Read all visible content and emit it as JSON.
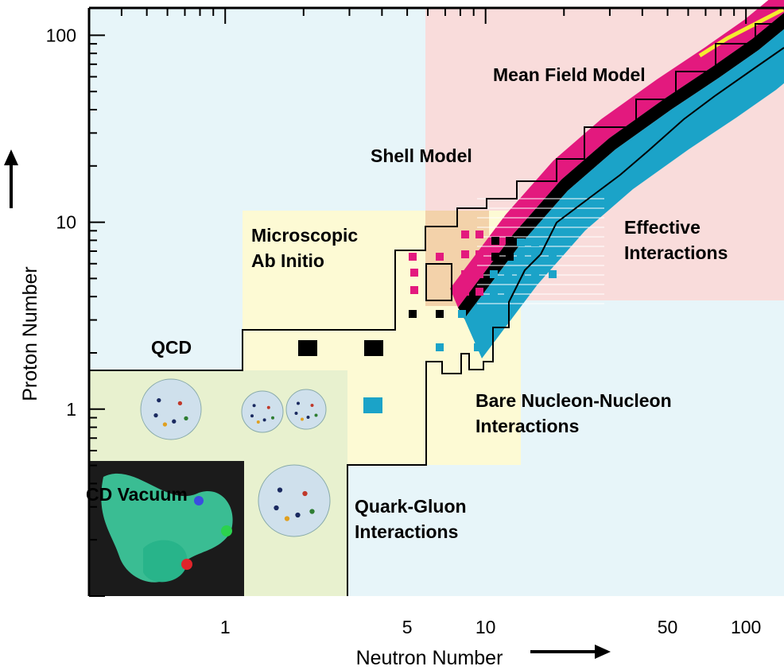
{
  "chart_data": {
    "type": "region-map",
    "xscale": "log",
    "yscale": "log",
    "xlim": [
      0.3,
      140
    ],
    "ylim": [
      0.1,
      140
    ],
    "xlabel": "Neutron Number",
    "ylabel": "Proton Number",
    "xticks": [
      {
        "value": 1,
        "label": "1"
      },
      {
        "value": 5,
        "label": "5"
      },
      {
        "value": 10,
        "label": "10"
      },
      {
        "value": 50,
        "label": "50"
      },
      {
        "value": 100,
        "label": "100"
      }
    ],
    "yticks": [
      {
        "value": 1,
        "label": "1"
      },
      {
        "value": 10,
        "label": "10"
      },
      {
        "value": 100,
        "label": "100"
      }
    ],
    "regions": [
      {
        "name": "QCD",
        "label": "QCD",
        "color": "#e7f5f9"
      },
      {
        "name": "QCD Vacuum",
        "label": "CD Vacuum",
        "color": "#1b1b1b"
      },
      {
        "name": "Microscopic Ab Initio",
        "label_lines": [
          "Microscopic",
          "Ab Initio"
        ],
        "color": "#fdfad4"
      },
      {
        "name": "Mean Field Model",
        "label": "Mean Field Model",
        "color": "#f9dcdb"
      },
      {
        "name": "Shell Model",
        "label": "Shell Model",
        "color": "#f3d2aa"
      },
      {
        "name": "Effective Interactions",
        "label_lines": [
          "Effective",
          "Interactions"
        ]
      },
      {
        "name": "Bare Nucleon-Nucleon Interactions",
        "label_lines": [
          "Bare Nucleon-Nucleon",
          "Interactions"
        ]
      },
      {
        "name": "Quark-Gluon Interactions",
        "label_lines": [
          "Quark-Gluon",
          "Interactions"
        ],
        "color": "#e8f1cf"
      }
    ],
    "nuclide_colors": {
      "proton_rich": "#e3197e",
      "stable": "#000000",
      "neutron_rich": "#1ba3c8",
      "edge": "#f4ec30"
    }
  }
}
